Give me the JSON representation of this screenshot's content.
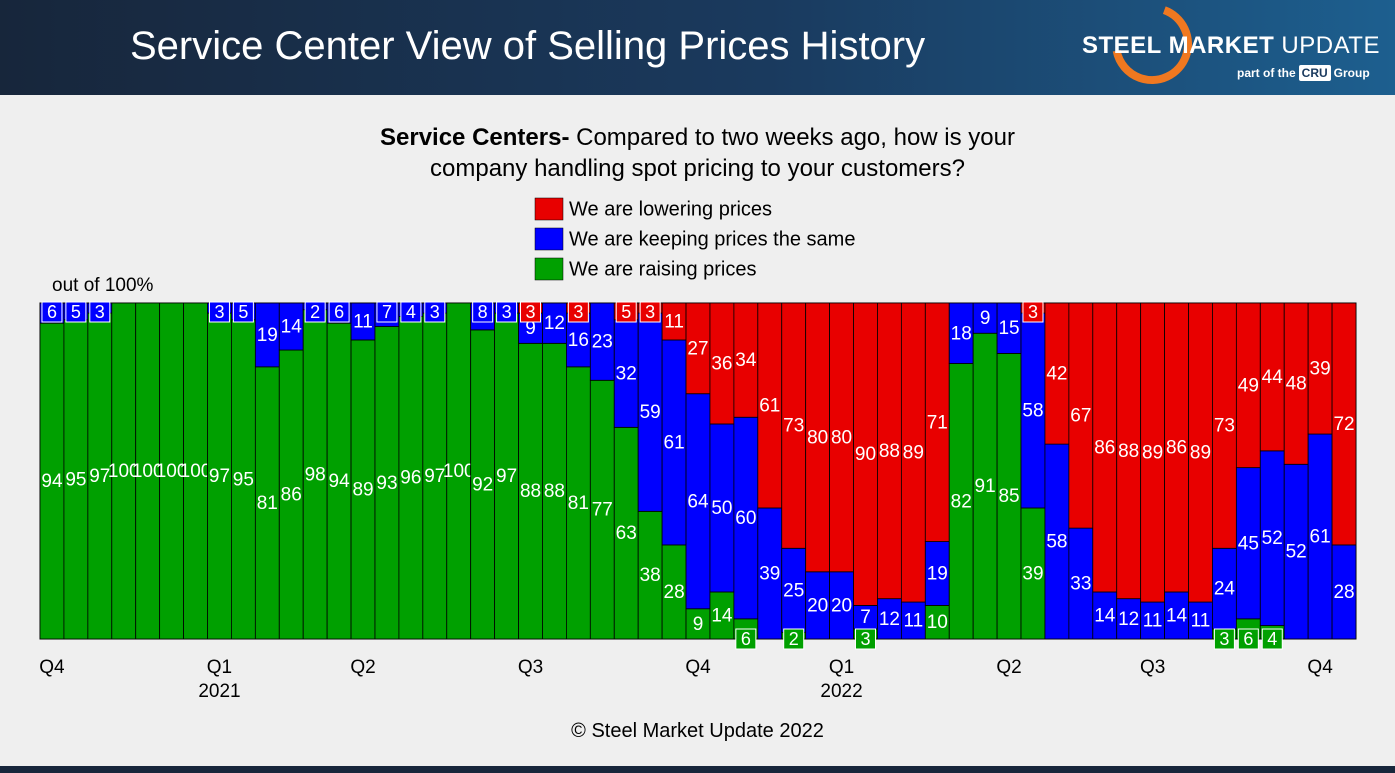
{
  "header": {
    "title": "Service Center View of Selling Prices History",
    "logo": {
      "name_bold": "STEEL MARKET",
      "name": "UPDATE",
      "tagline_pre": "part of the",
      "badge": "CRU",
      "tagline_post": "Group"
    }
  },
  "chart_data": {
    "type": "stacked_bar",
    "subtitle_bold": "Service Centers-",
    "subtitle": "Compared to two weeks ago, how is your company handling spot pricing to your customers?",
    "y_note": "out of 100%",
    "footer": "© Steel Market Update 2022",
    "ylim": [
      0,
      100
    ],
    "categories": [
      "Q4",
      null,
      null,
      null,
      null,
      null,
      null,
      "Q1",
      null,
      null,
      null,
      null,
      null,
      "Q2",
      null,
      null,
      null,
      null,
      null,
      null,
      "Q3",
      null,
      null,
      null,
      null,
      null,
      null,
      "Q4",
      null,
      null,
      null,
      null,
      null,
      "Q1",
      null,
      null,
      null,
      null,
      null,
      null,
      "Q2",
      null,
      null,
      null,
      null,
      null,
      "Q3",
      null,
      null,
      null,
      null,
      null,
      null,
      "Q4",
      null
    ],
    "years": [
      null,
      null,
      null,
      null,
      null,
      null,
      null,
      "2021",
      null,
      null,
      null,
      null,
      null,
      null,
      null,
      null,
      null,
      null,
      null,
      null,
      null,
      null,
      null,
      null,
      null,
      null,
      null,
      null,
      null,
      null,
      null,
      null,
      null,
      "2022",
      null,
      null,
      null,
      null,
      null,
      null,
      null,
      null,
      null,
      null,
      null,
      null,
      null,
      null,
      null,
      null,
      null,
      null,
      null,
      null,
      null
    ],
    "series": [
      {
        "name": "We are lowering prices",
        "color": "#e80000",
        "values": [
          0,
          0,
          0,
          0,
          0,
          0,
          0,
          0,
          0,
          0,
          0,
          0,
          0,
          0,
          0,
          0,
          0,
          0,
          0,
          0,
          3,
          0,
          3,
          0,
          5,
          3,
          11,
          27,
          36,
          34,
          61,
          73,
          80,
          80,
          90,
          88,
          89,
          71,
          0,
          0,
          0,
          3,
          42,
          67,
          86,
          88,
          89,
          86,
          89,
          73,
          49,
          44,
          48,
          39,
          72
        ]
      },
      {
        "name": "We are keeping prices the same",
        "color": "#0000ff",
        "values": [
          6,
          5,
          3,
          0,
          0,
          0,
          0,
          3,
          5,
          19,
          14,
          2,
          6,
          11,
          7,
          4,
          3,
          0,
          8,
          3,
          9,
          12,
          16,
          23,
          32,
          59,
          61,
          64,
          50,
          60,
          39,
          25,
          20,
          20,
          7,
          12,
          11,
          19,
          18,
          9,
          15,
          58,
          58,
          33,
          14,
          12,
          11,
          14,
          11,
          24,
          45,
          52,
          52,
          61,
          28
        ]
      },
      {
        "name": "We are raising prices",
        "color": "#00a000",
        "values": [
          94,
          95,
          97,
          100,
          100,
          100,
          100,
          97,
          95,
          81,
          86,
          98,
          94,
          89,
          93,
          96,
          97,
          100,
          92,
          97,
          88,
          88,
          81,
          77,
          63,
          38,
          28,
          9,
          14,
          6,
          0,
          2,
          0,
          0,
          3,
          0,
          0,
          10,
          82,
          91,
          85,
          39,
          0,
          0,
          0,
          0,
          0,
          0,
          0,
          3,
          6,
          4,
          0,
          0,
          0
        ]
      }
    ]
  }
}
